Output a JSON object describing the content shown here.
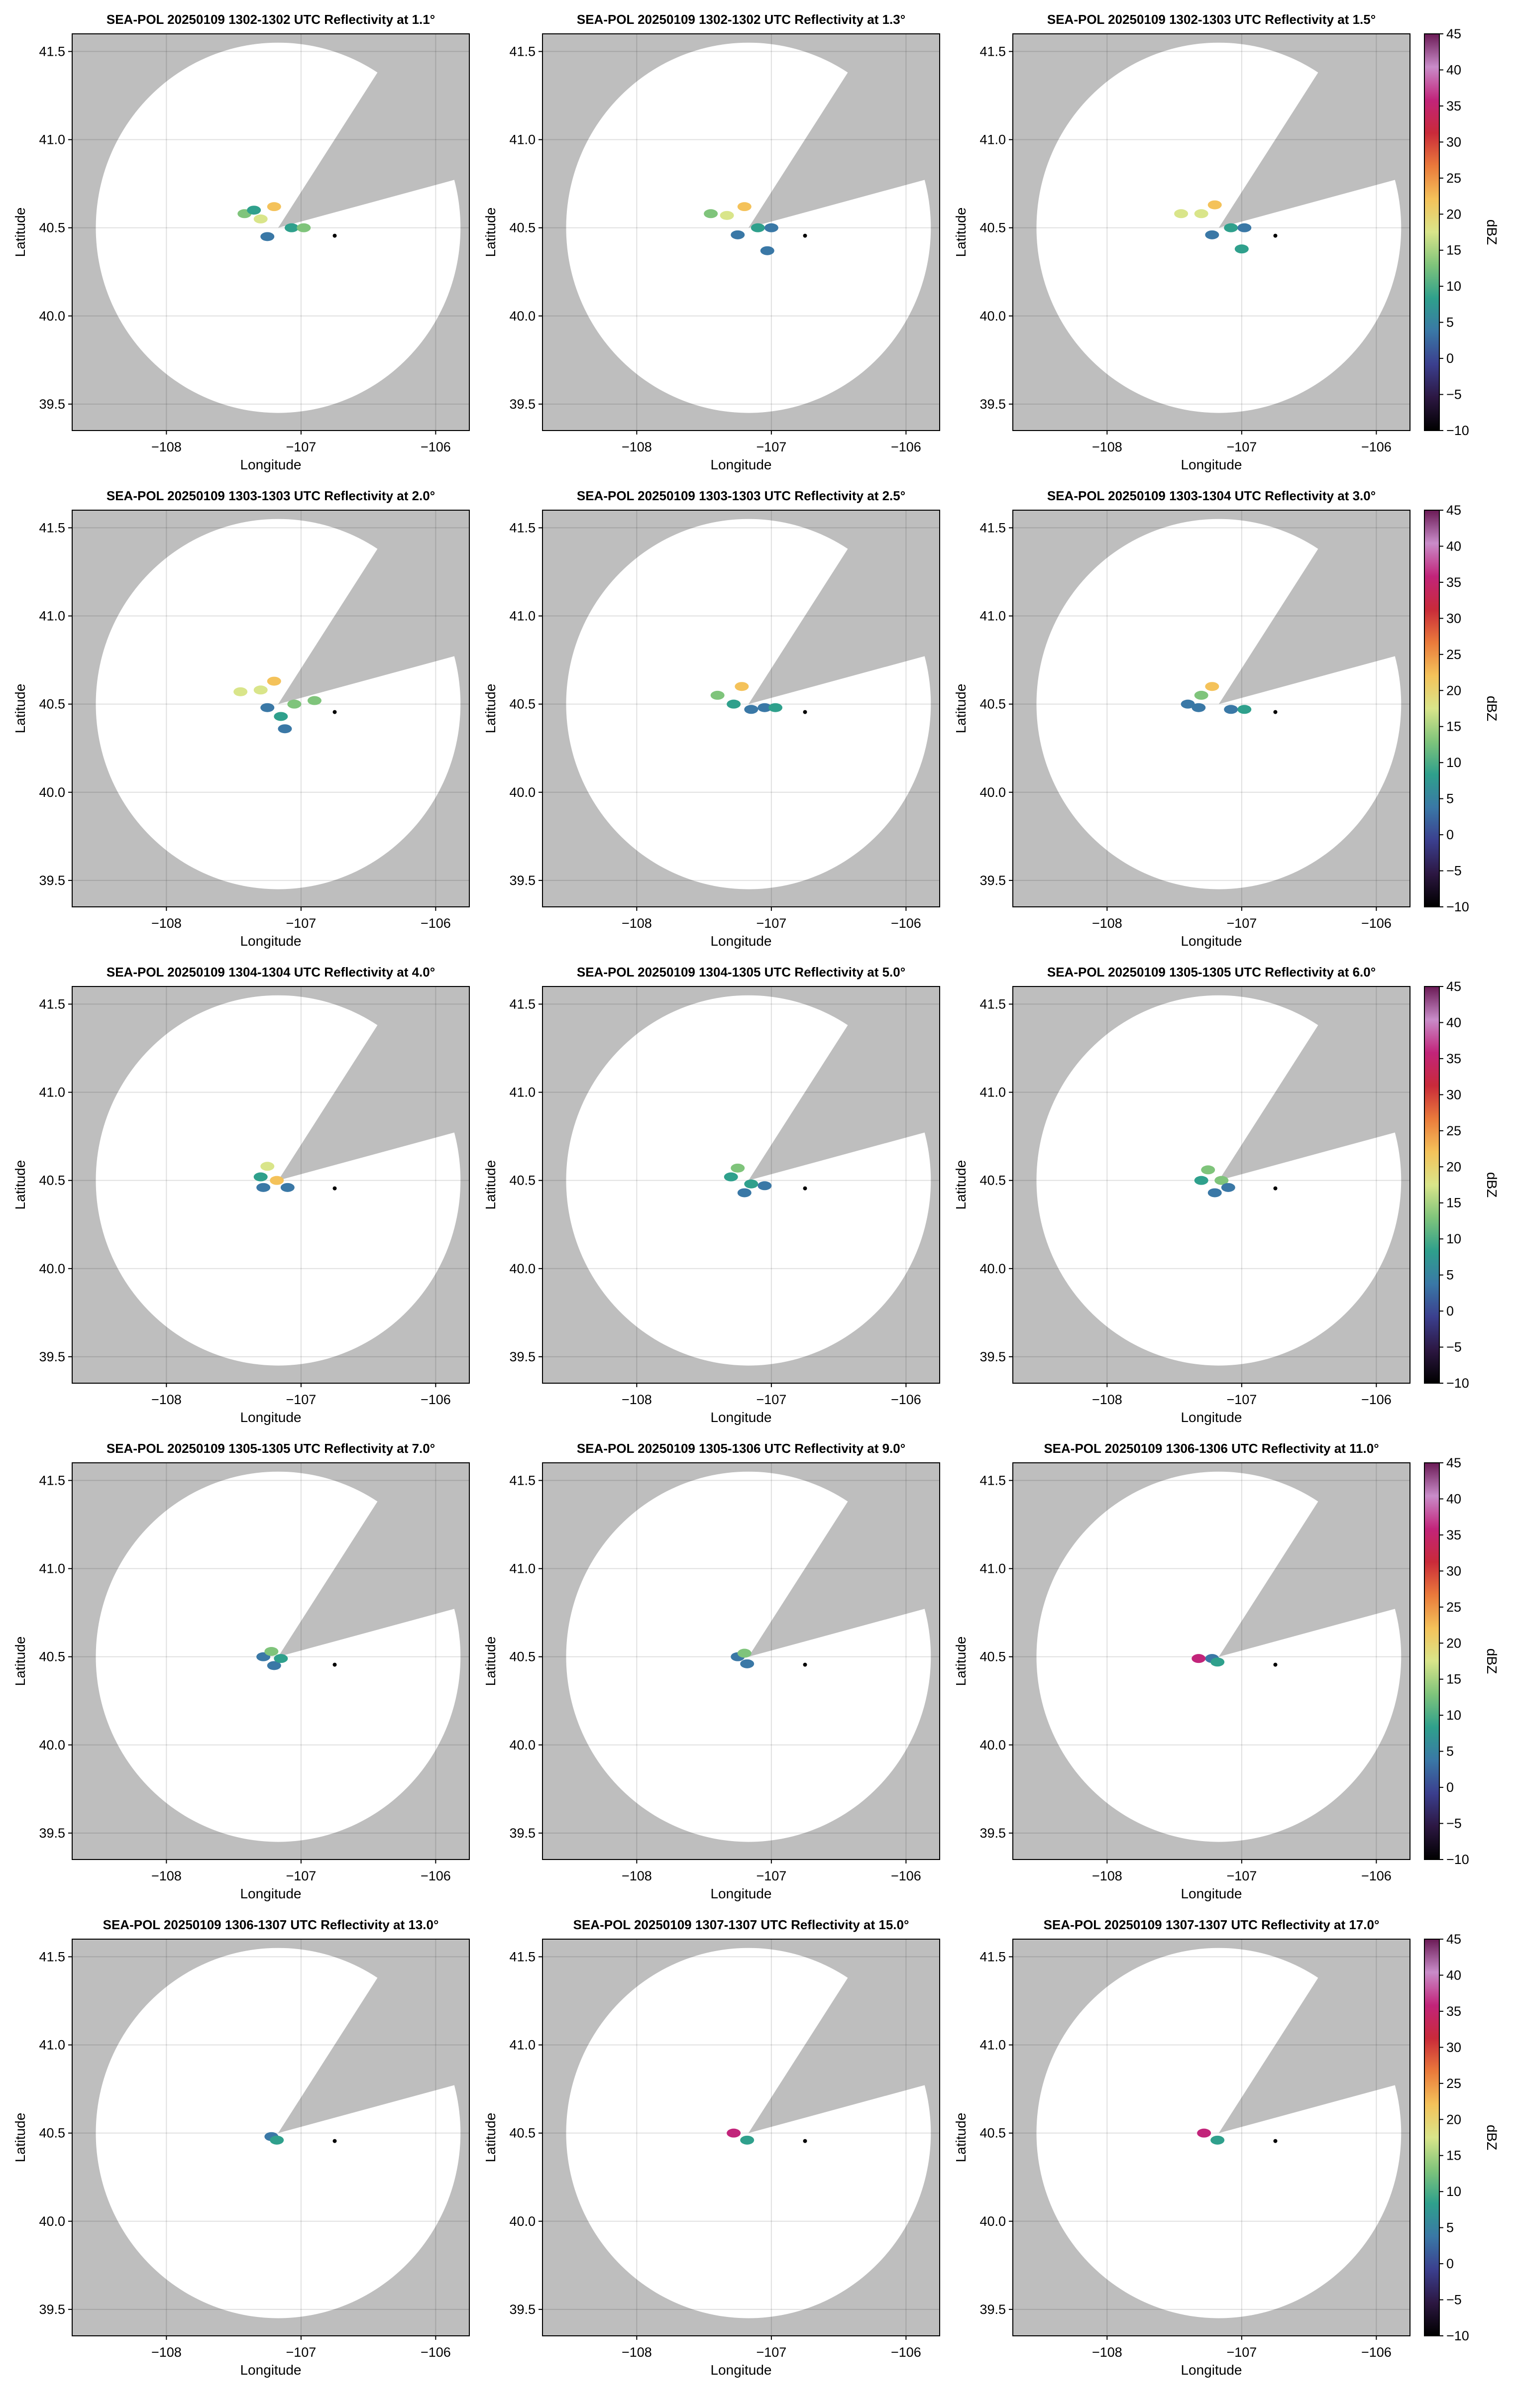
{
  "figure": {
    "x_axis_label": "Longitude",
    "y_axis_label": "Latitude",
    "colorbar_label": "dBZ",
    "colorbar_ticks": [
      "45",
      "40",
      "35",
      "30",
      "25",
      "20",
      "15",
      "10",
      "5",
      "0",
      "−5",
      "−10"
    ]
  },
  "chart_data": {
    "type": "scatter",
    "description_kind": "radar_ppi_grid",
    "grid": {
      "rows": 5,
      "cols": 3
    },
    "x_ticks": [
      -108,
      -107,
      -106
    ],
    "x_tick_labels": [
      "−108",
      "−107",
      "−106"
    ],
    "y_ticks": [
      39.5,
      40.0,
      40.5,
      41.0,
      41.5
    ],
    "y_tick_labels": [
      "39.5",
      "40.0",
      "40.5",
      "41.0",
      "41.5"
    ],
    "xlim": [
      -108.7,
      -105.75
    ],
    "ylim": [
      39.35,
      41.6
    ],
    "radar_site": {
      "lon": -107.17,
      "lat": 40.5
    },
    "marker": {
      "lon": -106.75,
      "lat": 40.455
    },
    "coverage_radius_deg_lat": 1.05,
    "blocked_sectors_deg": [
      [
        15,
        57
      ]
    ],
    "grid_on": true,
    "colorbar": {
      "min": -10,
      "max": 45,
      "label": "dBZ",
      "placement": "right of each row"
    },
    "colors": {
      "no_coverage": "#bebebe",
      "coverage": "#ffffff",
      "colormap": [
        "#000000",
        "#2c1742",
        "#3b3f8e",
        "#3a78a6",
        "#2fa08c",
        "#7fc47b",
        "#d9e58a",
        "#f4c25a",
        "#ea7a3b",
        "#c92a3a",
        "#c2247a",
        "#c98cc9",
        "#6a1a55"
      ]
    },
    "panels": [
      {
        "title": "SEA-POL 20250109 1302-1302 UTC Reflectivity at 1.1°",
        "elevation_deg": 1.1,
        "echoes": [
          {
            "lon": -107.42,
            "lat": 40.58,
            "dbz": 15
          },
          {
            "lon": -107.3,
            "lat": 40.55,
            "dbz": 18
          },
          {
            "lon": -107.25,
            "lat": 40.45,
            "dbz": 2
          },
          {
            "lon": -107.35,
            "lat": 40.6,
            "dbz": 10
          },
          {
            "lon": -107.07,
            "lat": 40.5,
            "dbz": 8
          },
          {
            "lon": -106.98,
            "lat": 40.5,
            "dbz": 12
          },
          {
            "lon": -107.2,
            "lat": 40.62,
            "dbz": 20
          }
        ]
      },
      {
        "title": "SEA-POL 20250109 1302-1302 UTC Reflectivity at 1.3°",
        "elevation_deg": 1.3,
        "echoes": [
          {
            "lon": -107.45,
            "lat": 40.58,
            "dbz": 15
          },
          {
            "lon": -107.33,
            "lat": 40.57,
            "dbz": 18
          },
          {
            "lon": -107.25,
            "lat": 40.46,
            "dbz": 2
          },
          {
            "lon": -107.1,
            "lat": 40.5,
            "dbz": 10
          },
          {
            "lon": -107.0,
            "lat": 40.5,
            "dbz": 6
          },
          {
            "lon": -107.2,
            "lat": 40.62,
            "dbz": 20
          },
          {
            "lon": -107.03,
            "lat": 40.37,
            "dbz": 5
          }
        ]
      },
      {
        "title": "SEA-POL 20250109 1302-1303 UTC Reflectivity at 1.5°",
        "elevation_deg": 1.5,
        "echoes": [
          {
            "lon": -107.45,
            "lat": 40.58,
            "dbz": 16
          },
          {
            "lon": -107.3,
            "lat": 40.58,
            "dbz": 18
          },
          {
            "lon": -107.22,
            "lat": 40.46,
            "dbz": 4
          },
          {
            "lon": -107.08,
            "lat": 40.5,
            "dbz": 8
          },
          {
            "lon": -106.98,
            "lat": 40.5,
            "dbz": 6
          },
          {
            "lon": -107.2,
            "lat": 40.63,
            "dbz": 20
          },
          {
            "lon": -107.0,
            "lat": 40.38,
            "dbz": 10
          }
        ]
      },
      {
        "title": "SEA-POL 20250109 1303-1303 UTC Reflectivity at 2.0°",
        "elevation_deg": 2.0,
        "echoes": [
          {
            "lon": -107.45,
            "lat": 40.57,
            "dbz": 16
          },
          {
            "lon": -107.3,
            "lat": 40.58,
            "dbz": 18
          },
          {
            "lon": -107.25,
            "lat": 40.48,
            "dbz": 4
          },
          {
            "lon": -107.05,
            "lat": 40.5,
            "dbz": 12
          },
          {
            "lon": -106.9,
            "lat": 40.52,
            "dbz": 15
          },
          {
            "lon": -107.2,
            "lat": 40.63,
            "dbz": 20
          },
          {
            "lon": -107.12,
            "lat": 40.36,
            "dbz": 6
          },
          {
            "lon": -107.15,
            "lat": 40.43,
            "dbz": 8
          }
        ]
      },
      {
        "title": "SEA-POL 20250109 1303-1303 UTC Reflectivity at 2.5°",
        "elevation_deg": 2.5,
        "echoes": [
          {
            "lon": -107.4,
            "lat": 40.55,
            "dbz": 14
          },
          {
            "lon": -107.28,
            "lat": 40.5,
            "dbz": 10
          },
          {
            "lon": -107.22,
            "lat": 40.6,
            "dbz": 20
          },
          {
            "lon": -107.05,
            "lat": 40.48,
            "dbz": 6
          },
          {
            "lon": -106.97,
            "lat": 40.48,
            "dbz": 8
          },
          {
            "lon": -107.15,
            "lat": 40.47,
            "dbz": 3
          }
        ]
      },
      {
        "title": "SEA-POL 20250109 1303-1304 UTC Reflectivity at 3.0°",
        "elevation_deg": 3.0,
        "echoes": [
          {
            "lon": -107.4,
            "lat": 40.5,
            "dbz": 6
          },
          {
            "lon": -107.3,
            "lat": 40.55,
            "dbz": 14
          },
          {
            "lon": -107.22,
            "lat": 40.6,
            "dbz": 20
          },
          {
            "lon": -107.08,
            "lat": 40.47,
            "dbz": 5
          },
          {
            "lon": -106.98,
            "lat": 40.47,
            "dbz": 8
          },
          {
            "lon": -107.32,
            "lat": 40.48,
            "dbz": 3
          }
        ]
      },
      {
        "title": "SEA-POL 20250109 1304-1304 UTC Reflectivity at 4.0°",
        "elevation_deg": 4.0,
        "echoes": [
          {
            "lon": -107.3,
            "lat": 40.52,
            "dbz": 8
          },
          {
            "lon": -107.25,
            "lat": 40.58,
            "dbz": 16
          },
          {
            "lon": -107.18,
            "lat": 40.5,
            "dbz": 20
          },
          {
            "lon": -107.1,
            "lat": 40.46,
            "dbz": 6
          },
          {
            "lon": -107.28,
            "lat": 40.46,
            "dbz": 4
          }
        ]
      },
      {
        "title": "SEA-POL 20250109 1304-1305 UTC Reflectivity at 5.0°",
        "elevation_deg": 5.0,
        "echoes": [
          {
            "lon": -107.3,
            "lat": 40.52,
            "dbz": 8
          },
          {
            "lon": -107.25,
            "lat": 40.57,
            "dbz": 14
          },
          {
            "lon": -107.15,
            "lat": 40.48,
            "dbz": 10
          },
          {
            "lon": -107.2,
            "lat": 40.43,
            "dbz": 4
          },
          {
            "lon": -107.05,
            "lat": 40.47,
            "dbz": 6
          }
        ]
      },
      {
        "title": "SEA-POL 20250109 1305-1305 UTC Reflectivity at 6.0°",
        "elevation_deg": 6.0,
        "echoes": [
          {
            "lon": -107.3,
            "lat": 40.5,
            "dbz": 8
          },
          {
            "lon": -107.25,
            "lat": 40.56,
            "dbz": 14
          },
          {
            "lon": -107.15,
            "lat": 40.5,
            "dbz": 12
          },
          {
            "lon": -107.2,
            "lat": 40.43,
            "dbz": 4
          },
          {
            "lon": -107.1,
            "lat": 40.46,
            "dbz": 6
          }
        ]
      },
      {
        "title": "SEA-POL 20250109 1305-1305 UTC Reflectivity at 7.0°",
        "elevation_deg": 7.0,
        "echoes": [
          {
            "lon": -107.28,
            "lat": 40.5,
            "dbz": 6
          },
          {
            "lon": -107.22,
            "lat": 40.53,
            "dbz": 12
          },
          {
            "lon": -107.2,
            "lat": 40.45,
            "dbz": 4
          },
          {
            "lon": -107.15,
            "lat": 40.49,
            "dbz": 8
          }
        ]
      },
      {
        "title": "SEA-POL 20250109 1305-1306 UTC Reflectivity at 9.0°",
        "elevation_deg": 9.0,
        "echoes": [
          {
            "lon": -107.25,
            "lat": 40.5,
            "dbz": 6
          },
          {
            "lon": -107.2,
            "lat": 40.52,
            "dbz": 12
          },
          {
            "lon": -107.18,
            "lat": 40.46,
            "dbz": 4
          }
        ]
      },
      {
        "title": "SEA-POL 20250109 1306-1306 UTC Reflectivity at 11.0°",
        "elevation_deg": 11.0,
        "echoes": [
          {
            "lon": -107.22,
            "lat": 40.49,
            "dbz": 6
          },
          {
            "lon": -107.18,
            "lat": 40.47,
            "dbz": 10
          },
          {
            "lon": -107.32,
            "lat": 40.49,
            "dbz": 35
          }
        ]
      },
      {
        "title": "SEA-POL 20250109 1306-1307 UTC Reflectivity at 13.0°",
        "elevation_deg": 13.0,
        "echoes": [
          {
            "lon": -107.22,
            "lat": 40.48,
            "dbz": 4
          },
          {
            "lon": -107.18,
            "lat": 40.46,
            "dbz": 10
          }
        ]
      },
      {
        "title": "SEA-POL 20250109 1307-1307 UTC Reflectivity at 15.0°",
        "elevation_deg": 15.0,
        "echoes": [
          {
            "lon": -107.18,
            "lat": 40.46,
            "dbz": 10
          },
          {
            "lon": -107.28,
            "lat": 40.5,
            "dbz": 35
          }
        ]
      },
      {
        "title": "SEA-POL 20250109 1307-1307 UTC Reflectivity at 17.0°",
        "elevation_deg": 17.0,
        "echoes": [
          {
            "lon": -107.18,
            "lat": 40.46,
            "dbz": 10
          },
          {
            "lon": -107.28,
            "lat": 40.5,
            "dbz": 38
          }
        ]
      }
    ]
  }
}
